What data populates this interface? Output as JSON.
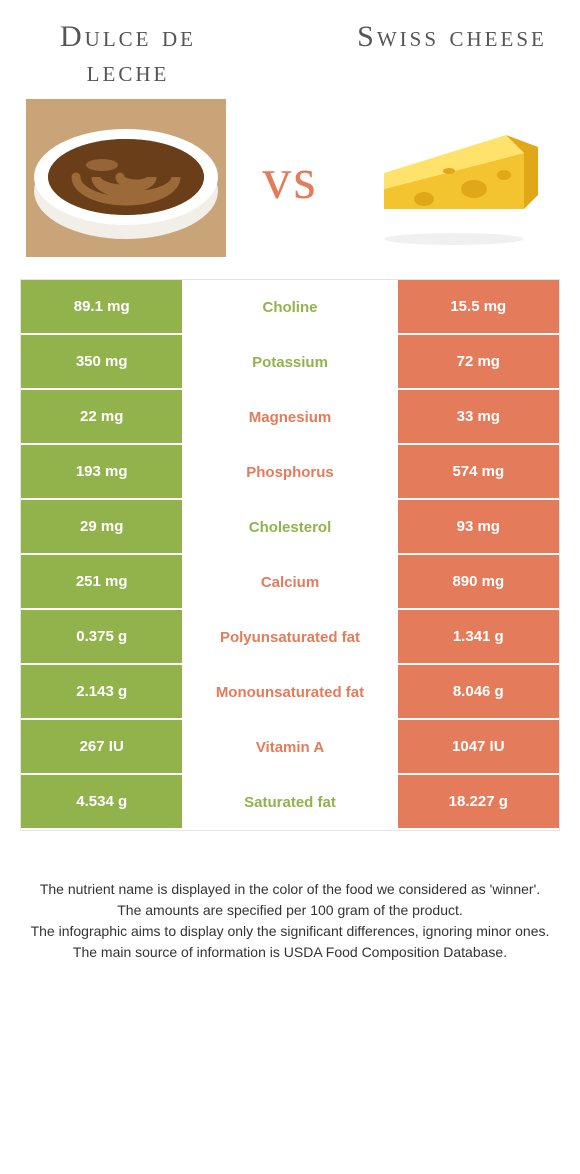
{
  "colors": {
    "left_winner": "#92b34c",
    "right_winner": "#e47b5a",
    "text_gray": "#555555"
  },
  "header": {
    "left_title": "Dulce de leche",
    "right_title": "Swiss cheese",
    "vs": "vs"
  },
  "rows": [
    {
      "left": "89.1 mg",
      "name": "Choline",
      "right": "15.5 mg",
      "winner": "left"
    },
    {
      "left": "350 mg",
      "name": "Potassium",
      "right": "72 mg",
      "winner": "left"
    },
    {
      "left": "22 mg",
      "name": "Magnesium",
      "right": "33 mg",
      "winner": "right"
    },
    {
      "left": "193 mg",
      "name": "Phosphorus",
      "right": "574 mg",
      "winner": "right"
    },
    {
      "left": "29 mg",
      "name": "Cholesterol",
      "right": "93 mg",
      "winner": "left"
    },
    {
      "left": "251 mg",
      "name": "Calcium",
      "right": "890 mg",
      "winner": "right"
    },
    {
      "left": "0.375 g",
      "name": "Polyunsaturated fat",
      "right": "1.341 g",
      "winner": "right"
    },
    {
      "left": "2.143 g",
      "name": "Monounsaturated fat",
      "right": "8.046 g",
      "winner": "right"
    },
    {
      "left": "267 IU",
      "name": "Vitamin A",
      "right": "1047 IU",
      "winner": "right"
    },
    {
      "left": "4.534 g",
      "name": "Saturated fat",
      "right": "18.227 g",
      "winner": "left"
    }
  ],
  "footer": {
    "line1": "The nutrient name is displayed in the color of the food we considered as 'winner'.",
    "line2": "The amounts are specified per 100 gram of the product.",
    "line3": "The infographic aims to display only the significant differences, ignoring minor ones.",
    "line4": "The main source of information is USDA Food Composition Database."
  }
}
